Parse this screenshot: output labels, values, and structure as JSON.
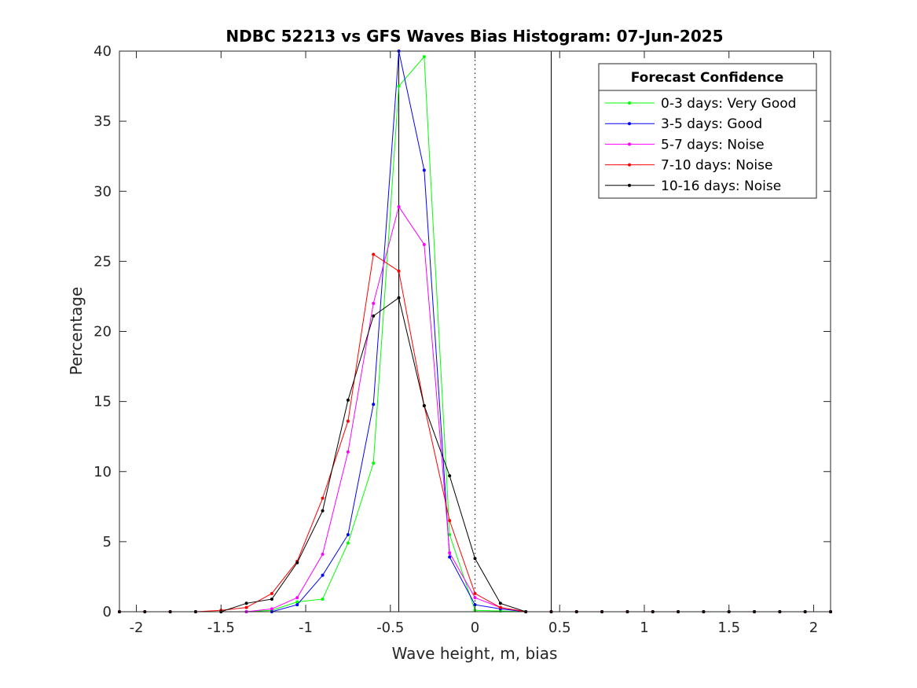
{
  "chart_data": {
    "type": "line",
    "title": "NDBC 52213 vs GFS Waves Bias Histogram: 07-Jun-2025",
    "xlabel": "Wave height, m, bias",
    "ylabel": "Percentage",
    "xlim": [
      -2.1,
      2.1
    ],
    "ylim": [
      0,
      40
    ],
    "xticks": [
      -2,
      -1.5,
      -1,
      -0.5,
      0,
      0.5,
      1,
      1.5,
      2
    ],
    "xtick_labels": [
      "-2",
      "-1.5",
      "-1",
      "-0.5",
      "0",
      "0.5",
      "1",
      "1.5",
      "2"
    ],
    "yticks": [
      0,
      5,
      10,
      15,
      20,
      25,
      30,
      35,
      40
    ],
    "ytick_labels": [
      "0",
      "5",
      "10",
      "15",
      "20",
      "25",
      "30",
      "35",
      "40"
    ],
    "grid": false,
    "reference_lines": [
      {
        "x": -0.45,
        "style": "solid"
      },
      {
        "x": 0,
        "style": "dotted"
      },
      {
        "x": 0.45,
        "style": "solid"
      }
    ],
    "legend": {
      "title": "Forecast Confidence",
      "placement": "top-right"
    },
    "x": [
      -2.1,
      -1.95,
      -1.8,
      -1.65,
      -1.5,
      -1.35,
      -1.2,
      -1.05,
      -0.9,
      -0.75,
      -0.6,
      -0.45,
      -0.3,
      -0.15,
      0,
      0.15,
      0.3,
      0.45,
      0.6,
      0.75,
      0.9,
      1.05,
      1.2,
      1.35,
      1.5,
      1.65,
      1.8,
      1.95,
      2.1
    ],
    "series": [
      {
        "name": "0-3 days: Very Good",
        "color": "#00ff00",
        "values": [
          0,
          0,
          0,
          0,
          0,
          0,
          0.1,
          0.7,
          0.9,
          4.9,
          10.6,
          37.5,
          39.6,
          5.5,
          0.1,
          0.05,
          0,
          0,
          0,
          0,
          0,
          0,
          0,
          0,
          0,
          0,
          0,
          0,
          0
        ]
      },
      {
        "name": "3-5 days: Good",
        "color": "#0000ff",
        "values": [
          0,
          0,
          0,
          0,
          0,
          0,
          0,
          0.5,
          2.6,
          5.5,
          14.8,
          40.0,
          31.5,
          3.9,
          0.5,
          0.2,
          0,
          0,
          0,
          0,
          0,
          0,
          0,
          0,
          0,
          0,
          0,
          0,
          0
        ]
      },
      {
        "name": "5-7 days: Noise",
        "color": "#ff00ff",
        "values": [
          0,
          0,
          0,
          0,
          0,
          0,
          0.2,
          1.0,
          4.1,
          11.4,
          22.0,
          28.9,
          26.2,
          4.2,
          1.0,
          0.3,
          0,
          0,
          0,
          0,
          0,
          0,
          0,
          0,
          0,
          0,
          0,
          0,
          0
        ]
      },
      {
        "name": "7-10 days: Noise",
        "color": "#ff0000",
        "values": [
          0,
          0,
          0,
          0,
          0.1,
          0.3,
          1.3,
          3.6,
          8.1,
          13.6,
          25.5,
          24.3,
          14.7,
          6.5,
          1.3,
          0.3,
          0,
          0,
          0,
          0,
          0,
          0,
          0,
          0,
          0,
          0,
          0,
          0,
          0
        ]
      },
      {
        "name": "10-16 days: Noise",
        "color": "#000000",
        "values": [
          0,
          0,
          0,
          0,
          0,
          0.6,
          0.9,
          3.5,
          7.2,
          15.1,
          21.1,
          22.4,
          14.7,
          9.7,
          3.8,
          0.6,
          0,
          0,
          0,
          0,
          0,
          0,
          0,
          0,
          0,
          0,
          0,
          0,
          0
        ]
      }
    ]
  }
}
